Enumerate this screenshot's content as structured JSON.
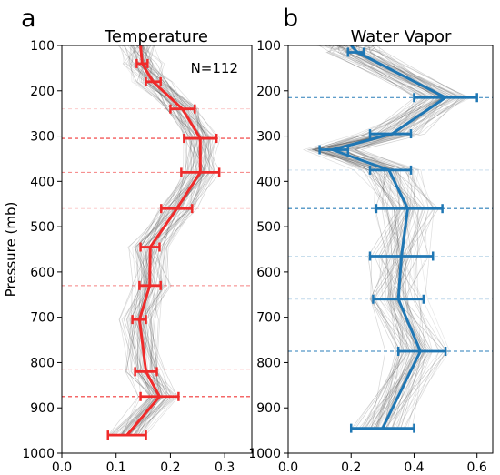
{
  "figure": {
    "ylabel": "Pressure (mb)"
  },
  "chart_data": [
    {
      "type": "line",
      "panel_letter": "a",
      "title": "Temperature",
      "annotation": "N=112",
      "xlabel": "",
      "ylabel": "Pressure (mb)",
      "xlim": [
        0.0,
        0.35
      ],
      "ylim": [
        1000,
        100
      ],
      "y_inverted": true,
      "xticks": [
        "0.0",
        "0.1",
        "0.2",
        "0.3"
      ],
      "xtick_values": [
        0.0,
        0.1,
        0.2,
        0.3
      ],
      "yticks": [
        "100",
        "200",
        "300",
        "400",
        "500",
        "600",
        "700",
        "800",
        "900",
        "1000"
      ],
      "ytick_values": [
        100,
        200,
        300,
        400,
        500,
        600,
        700,
        800,
        900,
        1000
      ],
      "grid": false,
      "color": "#ef2b2b",
      "mean": {
        "pressure": [
          100,
          140,
          180,
          240,
          305,
          380,
          460,
          545,
          630,
          705,
          820,
          875,
          960
        ],
        "value": [
          0.145,
          0.148,
          0.168,
          0.222,
          0.255,
          0.255,
          0.212,
          0.163,
          0.162,
          0.143,
          0.155,
          0.18,
          0.12
        ]
      },
      "error_bars": [
        {
          "pressure": 140,
          "low": 0.138,
          "high": 0.158
        },
        {
          "pressure": 180,
          "low": 0.155,
          "high": 0.182
        },
        {
          "pressure": 240,
          "low": 0.2,
          "high": 0.245
        },
        {
          "pressure": 305,
          "low": 0.225,
          "high": 0.285
        },
        {
          "pressure": 380,
          "low": 0.22,
          "high": 0.29
        },
        {
          "pressure": 460,
          "low": 0.183,
          "high": 0.24
        },
        {
          "pressure": 545,
          "low": 0.145,
          "high": 0.18
        },
        {
          "pressure": 630,
          "low": 0.143,
          "high": 0.182
        },
        {
          "pressure": 705,
          "low": 0.13,
          "high": 0.155
        },
        {
          "pressure": 820,
          "low": 0.135,
          "high": 0.175
        },
        {
          "pressure": 875,
          "low": 0.145,
          "high": 0.215
        },
        {
          "pressure": 960,
          "low": 0.085,
          "high": 0.155
        }
      ],
      "reference_lines": [
        {
          "pressure": 240,
          "strength": "faint"
        },
        {
          "pressure": 305,
          "strength": "strong"
        },
        {
          "pressure": 380,
          "strength": "medium"
        },
        {
          "pressure": 460,
          "strength": "faint"
        },
        {
          "pressure": 630,
          "strength": "medium"
        },
        {
          "pressure": 815,
          "strength": "faint"
        },
        {
          "pressure": 875,
          "strength": "strong"
        }
      ]
    },
    {
      "type": "line",
      "panel_letter": "b",
      "title": "Water Vapor",
      "xlabel": "",
      "ylabel": "",
      "xlim": [
        0.0,
        0.65
      ],
      "ylim": [
        1000,
        100
      ],
      "y_inverted": true,
      "xticks": [
        "0.0",
        "0.2",
        "0.4",
        "0.6"
      ],
      "xtick_values": [
        0.0,
        0.2,
        0.4,
        0.6
      ],
      "yticks": [
        "100",
        "200",
        "300",
        "400",
        "500",
        "600",
        "700",
        "800",
        "900",
        "1000"
      ],
      "ytick_values": [
        100,
        200,
        300,
        400,
        500,
        600,
        700,
        800,
        900,
        1000
      ],
      "grid": false,
      "color": "#1f77b4",
      "mean": {
        "pressure": [
          100,
          115,
          215,
          295,
          330,
          375,
          460,
          565,
          660,
          775,
          945
        ],
        "value": [
          0.2,
          0.22,
          0.5,
          0.33,
          0.14,
          0.32,
          0.38,
          0.36,
          0.35,
          0.42,
          0.3
        ]
      },
      "error_bars": [
        {
          "pressure": 115,
          "low": 0.19,
          "high": 0.24
        },
        {
          "pressure": 215,
          "low": 0.4,
          "high": 0.6
        },
        {
          "pressure": 295,
          "low": 0.26,
          "high": 0.39
        },
        {
          "pressure": 330,
          "low": 0.1,
          "high": 0.19
        },
        {
          "pressure": 375,
          "low": 0.26,
          "high": 0.39
        },
        {
          "pressure": 460,
          "low": 0.28,
          "high": 0.49
        },
        {
          "pressure": 565,
          "low": 0.26,
          "high": 0.46
        },
        {
          "pressure": 660,
          "low": 0.27,
          "high": 0.43
        },
        {
          "pressure": 775,
          "low": 0.35,
          "high": 0.5
        },
        {
          "pressure": 945,
          "low": 0.2,
          "high": 0.4
        }
      ],
      "reference_lines": [
        {
          "pressure": 215,
          "strength": "strong"
        },
        {
          "pressure": 375,
          "strength": "faint"
        },
        {
          "pressure": 460,
          "strength": "strong"
        },
        {
          "pressure": 565,
          "strength": "faint"
        },
        {
          "pressure": 660,
          "strength": "faint"
        },
        {
          "pressure": 775,
          "strength": "strong"
        }
      ]
    }
  ]
}
